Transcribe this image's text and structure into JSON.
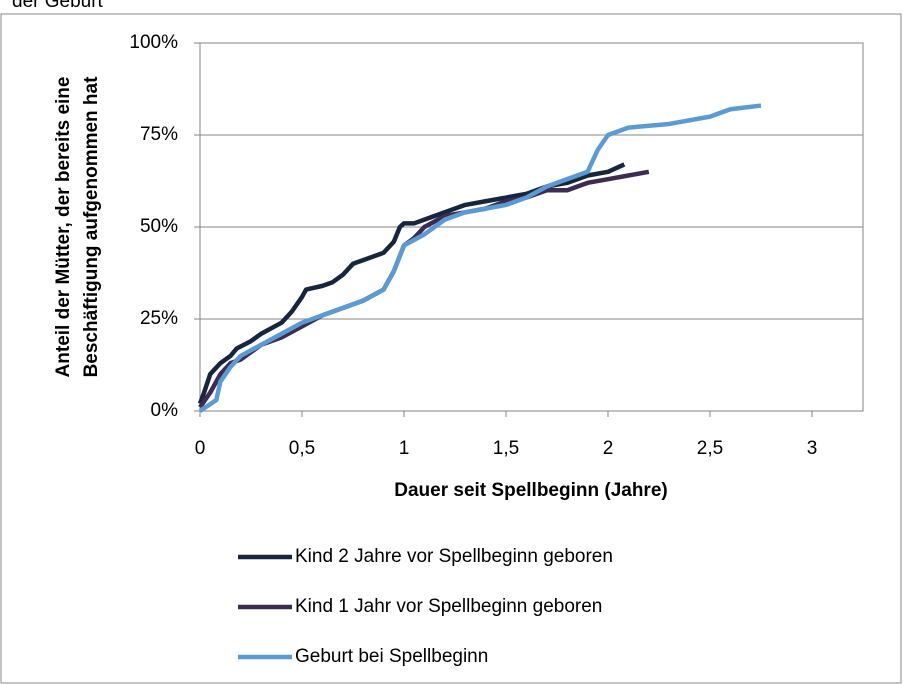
{
  "chart_data": {
    "type": "line",
    "title": "der Geburt",
    "xlabel": "Dauer seit Spellbeginn (Jahre)",
    "ylabel": [
      "Anteil der Mütter, der bereits eine",
      "Beschäftigung aufgenommen hat"
    ],
    "xlim": [
      0,
      3.25
    ],
    "xticks": [
      0,
      {
        "value": 0.5,
        "label": "0,5"
      },
      1,
      {
        "value": 1.5,
        "label": "1,5"
      },
      2,
      {
        "value": 2.5,
        "label": "2,5"
      },
      3
    ],
    "ylim": [
      0,
      100
    ],
    "yticks": [
      {
        "value": 0,
        "label": "0%"
      },
      {
        "value": 25,
        "label": "25%"
      },
      {
        "value": 50,
        "label": "50%"
      },
      {
        "value": 75,
        "label": "75%"
      },
      {
        "value": 100,
        "label": "100%"
      }
    ],
    "grid": true,
    "legend": "bottom",
    "series": [
      {
        "name": "Kind 2 Jahre vor Spellbeginn geboren",
        "color": "#17263c",
        "x": [
          0,
          0.02,
          0.05,
          0.1,
          0.15,
          0.18,
          0.25,
          0.3,
          0.4,
          0.45,
          0.5,
          0.52,
          0.6,
          0.65,
          0.7,
          0.75,
          0.8,
          0.9,
          0.95,
          0.98,
          1.0,
          1.05,
          1.1,
          1.2,
          1.3,
          1.4,
          1.5,
          1.6,
          1.7,
          1.8,
          1.9,
          2.0,
          2.08
        ],
        "values": [
          2,
          5,
          10,
          13,
          15,
          17,
          19,
          21,
          24,
          27,
          31,
          33,
          34,
          35,
          37,
          40,
          41,
          43,
          46,
          50,
          51,
          51,
          52,
          54,
          56,
          57,
          58,
          59,
          61,
          62,
          64,
          65,
          67
        ]
      },
      {
        "name": "Kind 1 Jahr vor Spellbeginn geboren",
        "color": "#3d2b52",
        "x": [
          0,
          0.05,
          0.1,
          0.15,
          0.2,
          0.3,
          0.4,
          0.5,
          0.6,
          0.7,
          0.8,
          0.9,
          0.95,
          1.0,
          1.05,
          1.1,
          1.2,
          1.3,
          1.4,
          1.5,
          1.6,
          1.7,
          1.8,
          1.9,
          2.0,
          2.1,
          2.2
        ],
        "values": [
          1,
          5,
          10,
          13,
          14,
          18,
          20,
          23,
          26,
          28,
          30,
          33,
          38,
          45,
          47,
          50,
          53,
          54,
          55,
          57,
          58,
          60,
          60,
          62,
          63,
          64,
          65
        ]
      },
      {
        "name": "Geburt bei Spellbeginn",
        "color": "#5b9bd5",
        "x": [
          0,
          0.08,
          0.1,
          0.15,
          0.2,
          0.3,
          0.4,
          0.5,
          0.6,
          0.7,
          0.8,
          0.9,
          0.95,
          1.0,
          1.1,
          1.2,
          1.3,
          1.4,
          1.5,
          1.6,
          1.7,
          1.8,
          1.9,
          1.95,
          2.0,
          2.1,
          2.3,
          2.5,
          2.6,
          2.75
        ],
        "values": [
          0,
          3,
          8,
          12,
          15,
          18,
          21,
          24,
          26,
          28,
          30,
          33,
          38,
          45,
          48,
          52,
          54,
          55,
          56,
          58,
          61,
          63,
          65,
          71,
          75,
          77,
          78,
          80,
          82,
          83
        ]
      }
    ]
  }
}
